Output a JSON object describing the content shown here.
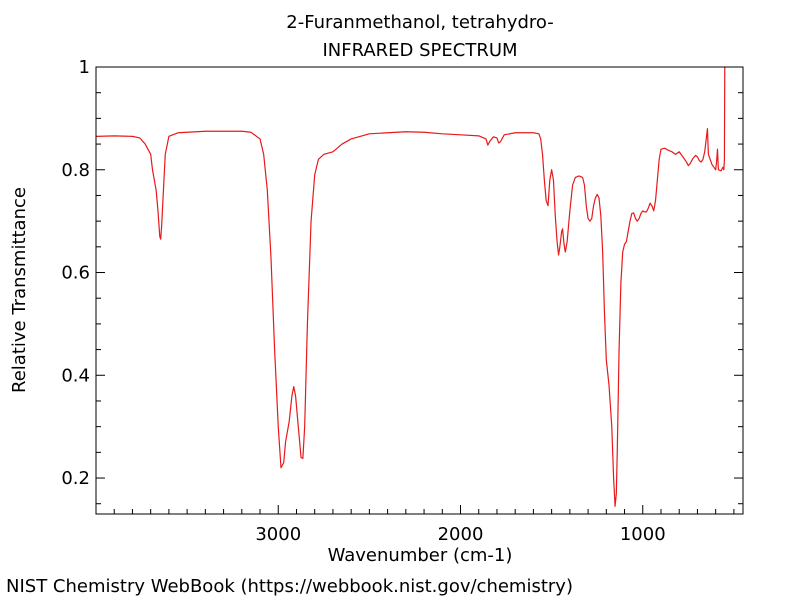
{
  "chart_data": {
    "type": "line",
    "title": "2-Furanmethanol, tetrahydro-",
    "subtitle": "INFRARED SPECTRUM",
    "xlabel": "Wavenumber (cm-1)",
    "ylabel": "Relative Transmittance",
    "xlim": [
      4000,
      450
    ],
    "ylim": [
      0.13,
      1.0
    ],
    "x_ticks": [
      3000,
      2000,
      1000
    ],
    "y_ticks": [
      0.2,
      0.4,
      0.6,
      0.8,
      1
    ],
    "grid": false,
    "legend": "none",
    "series": [
      {
        "color": "#e8191b",
        "points": [
          [
            4000,
            0.865
          ],
          [
            3900,
            0.866
          ],
          [
            3800,
            0.865
          ],
          [
            3760,
            0.862
          ],
          [
            3730,
            0.85
          ],
          [
            3700,
            0.83
          ],
          [
            3690,
            0.8
          ],
          [
            3670,
            0.76
          ],
          [
            3660,
            0.72
          ],
          [
            3650,
            0.67
          ],
          [
            3645,
            0.665
          ],
          [
            3640,
            0.69
          ],
          [
            3630,
            0.76
          ],
          [
            3620,
            0.83
          ],
          [
            3600,
            0.865
          ],
          [
            3550,
            0.872
          ],
          [
            3400,
            0.875
          ],
          [
            3200,
            0.875
          ],
          [
            3150,
            0.873
          ],
          [
            3100,
            0.86
          ],
          [
            3080,
            0.83
          ],
          [
            3060,
            0.76
          ],
          [
            3040,
            0.63
          ],
          [
            3020,
            0.45
          ],
          [
            3000,
            0.3
          ],
          [
            2985,
            0.22
          ],
          [
            2970,
            0.23
          ],
          [
            2960,
            0.27
          ],
          [
            2940,
            0.31
          ],
          [
            2925,
            0.36
          ],
          [
            2915,
            0.378
          ],
          [
            2905,
            0.36
          ],
          [
            2890,
            0.3
          ],
          [
            2875,
            0.24
          ],
          [
            2865,
            0.238
          ],
          [
            2855,
            0.3
          ],
          [
            2840,
            0.5
          ],
          [
            2820,
            0.7
          ],
          [
            2800,
            0.79
          ],
          [
            2780,
            0.82
          ],
          [
            2750,
            0.83
          ],
          [
            2700,
            0.835
          ],
          [
            2650,
            0.85
          ],
          [
            2600,
            0.86
          ],
          [
            2500,
            0.87
          ],
          [
            2400,
            0.872
          ],
          [
            2300,
            0.874
          ],
          [
            2200,
            0.873
          ],
          [
            2100,
            0.87
          ],
          [
            2000,
            0.868
          ],
          [
            1900,
            0.866
          ],
          [
            1860,
            0.86
          ],
          [
            1850,
            0.848
          ],
          [
            1840,
            0.855
          ],
          [
            1820,
            0.864
          ],
          [
            1800,
            0.862
          ],
          [
            1790,
            0.852
          ],
          [
            1780,
            0.855
          ],
          [
            1760,
            0.868
          ],
          [
            1700,
            0.872
          ],
          [
            1600,
            0.872
          ],
          [
            1570,
            0.87
          ],
          [
            1560,
            0.86
          ],
          [
            1550,
            0.83
          ],
          [
            1540,
            0.78
          ],
          [
            1530,
            0.74
          ],
          [
            1520,
            0.73
          ],
          [
            1510,
            0.78
          ],
          [
            1500,
            0.8
          ],
          [
            1490,
            0.78
          ],
          [
            1480,
            0.71
          ],
          [
            1470,
            0.66
          ],
          [
            1462,
            0.634
          ],
          [
            1455,
            0.65
          ],
          [
            1445,
            0.68
          ],
          [
            1440,
            0.685
          ],
          [
            1432,
            0.655
          ],
          [
            1425,
            0.64
          ],
          [
            1415,
            0.66
          ],
          [
            1400,
            0.72
          ],
          [
            1385,
            0.77
          ],
          [
            1370,
            0.785
          ],
          [
            1350,
            0.788
          ],
          [
            1330,
            0.785
          ],
          [
            1320,
            0.77
          ],
          [
            1310,
            0.73
          ],
          [
            1300,
            0.705
          ],
          [
            1290,
            0.7
          ],
          [
            1280,
            0.705
          ],
          [
            1270,
            0.73
          ],
          [
            1260,
            0.745
          ],
          [
            1250,
            0.752
          ],
          [
            1240,
            0.745
          ],
          [
            1230,
            0.71
          ],
          [
            1220,
            0.64
          ],
          [
            1210,
            0.52
          ],
          [
            1200,
            0.43
          ],
          [
            1185,
            0.38
          ],
          [
            1170,
            0.3
          ],
          [
            1160,
            0.2
          ],
          [
            1152,
            0.145
          ],
          [
            1145,
            0.17
          ],
          [
            1140,
            0.25
          ],
          [
            1130,
            0.45
          ],
          [
            1120,
            0.58
          ],
          [
            1110,
            0.64
          ],
          [
            1100,
            0.655
          ],
          [
            1090,
            0.66
          ],
          [
            1080,
            0.68
          ],
          [
            1070,
            0.7
          ],
          [
            1060,
            0.715
          ],
          [
            1050,
            0.716
          ],
          [
            1040,
            0.705
          ],
          [
            1030,
            0.7
          ],
          [
            1020,
            0.705
          ],
          [
            1010,
            0.715
          ],
          [
            1000,
            0.72
          ],
          [
            990,
            0.718
          ],
          [
            980,
            0.718
          ],
          [
            970,
            0.725
          ],
          [
            960,
            0.735
          ],
          [
            950,
            0.73
          ],
          [
            940,
            0.72
          ],
          [
            930,
            0.74
          ],
          [
            920,
            0.78
          ],
          [
            910,
            0.82
          ],
          [
            900,
            0.84
          ],
          [
            880,
            0.842
          ],
          [
            860,
            0.838
          ],
          [
            840,
            0.835
          ],
          [
            820,
            0.83
          ],
          [
            800,
            0.835
          ],
          [
            780,
            0.825
          ],
          [
            760,
            0.815
          ],
          [
            750,
            0.808
          ],
          [
            740,
            0.812
          ],
          [
            725,
            0.822
          ],
          [
            710,
            0.828
          ],
          [
            700,
            0.825
          ],
          [
            690,
            0.818
          ],
          [
            680,
            0.815
          ],
          [
            670,
            0.82
          ],
          [
            660,
            0.835
          ],
          [
            650,
            0.865
          ],
          [
            645,
            0.88
          ],
          [
            640,
            0.83
          ],
          [
            630,
            0.82
          ],
          [
            620,
            0.81
          ],
          [
            610,
            0.805
          ],
          [
            600,
            0.8
          ],
          [
            595,
            0.815
          ],
          [
            590,
            0.84
          ],
          [
            585,
            0.8
          ],
          [
            570,
            0.798
          ],
          [
            560,
            0.805
          ],
          [
            555,
            0.8
          ],
          [
            552,
            0.82
          ],
          [
            550,
            1.0
          ]
        ]
      }
    ]
  },
  "footer": "NIST Chemistry WebBook (https://webbook.nist.gov/chemistry)",
  "colors": {
    "series": "#e8191b",
    "axes": "#000000",
    "background": "#ffffff"
  }
}
